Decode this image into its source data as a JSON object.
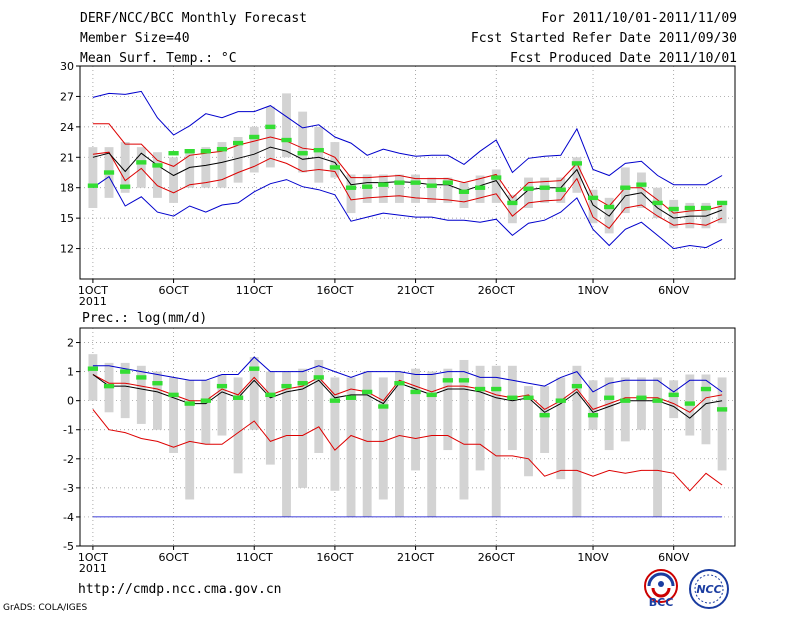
{
  "header": {
    "title": "DERF/NCC/BCC Monthly Forecast",
    "member_size": "Member Size=40",
    "variable": "Mean Surf. Temp.: °C",
    "period": "For 2011/10/01-2011/11/09",
    "fcst_started": "Fcst Started Refer Date 2011/09/30",
    "fcst_produced": "Fcst Produced Date 2011/10/01"
  },
  "footer": {
    "url": "http://cmdp.ncc.cma.gov.cn",
    "grads": "GrADS: COLA/IGES",
    "logo_bcc": "BCC",
    "logo_ncc": "NCC"
  },
  "colors": {
    "box": "#d3d3d3",
    "mean": "#000000",
    "envelope": "#0000cc",
    "percentile": "#dd0000",
    "observed": "#33dd33"
  },
  "chart_data": [
    {
      "name": "temperature",
      "type": "line",
      "title": "Mean Surf. Temp.: °C",
      "x_ticks": [
        "1OCT",
        "6OCT",
        "11OCT",
        "16OCT",
        "21OCT",
        "26OCT",
        "1NOV",
        "6NOV"
      ],
      "x_tick_days": [
        1,
        6,
        11,
        16,
        21,
        26,
        32,
        37
      ],
      "x_extra_label": "2011",
      "xlim": [
        0.2,
        40.8
      ],
      "ylim": [
        9,
        30
      ],
      "y_ticks": [
        12,
        15,
        18,
        21,
        24,
        27,
        30
      ],
      "grid": "dotted",
      "days": [
        1,
        2,
        3,
        4,
        5,
        6,
        7,
        8,
        9,
        10,
        11,
        12,
        13,
        14,
        15,
        16,
        17,
        18,
        19,
        20,
        21,
        22,
        23,
        24,
        25,
        26,
        27,
        28,
        29,
        30,
        31,
        32,
        33,
        34,
        35,
        36,
        37,
        38,
        39,
        40
      ],
      "mean": [
        21.0,
        21.4,
        19.6,
        21.4,
        20.2,
        19.2,
        20.0,
        20.2,
        20.5,
        20.9,
        21.3,
        22.0,
        21.6,
        20.8,
        21.0,
        20.5,
        18.3,
        18.5,
        18.5,
        18.6,
        18.5,
        18.3,
        18.3,
        17.7,
        18.2,
        18.7,
        16.4,
        17.8,
        18.0,
        18.0,
        19.8,
        16.3,
        15.2,
        17.2,
        17.5,
        16.0,
        15.0,
        15.2,
        15.2,
        15.8
      ],
      "p_high": [
        24.3,
        24.3,
        22.3,
        22.3,
        20.7,
        20.1,
        21.2,
        21.4,
        21.6,
        22.2,
        22.6,
        23.0,
        22.6,
        21.9,
        21.7,
        21.0,
        19.0,
        19.0,
        19.1,
        19.2,
        18.9,
        18.9,
        18.9,
        18.5,
        18.9,
        19.3,
        17.0,
        18.5,
        18.6,
        18.7,
        20.4,
        17.1,
        16.2,
        18.0,
        18.0,
        16.8,
        15.5,
        15.7,
        15.8,
        16.2
      ],
      "p_low": [
        21.3,
        21.5,
        18.7,
        19.9,
        18.2,
        17.5,
        18.3,
        18.5,
        18.8,
        19.5,
        20.1,
        20.9,
        20.4,
        19.6,
        19.8,
        19.6,
        16.8,
        17.0,
        17.1,
        17.2,
        17.0,
        16.9,
        16.8,
        16.6,
        17.0,
        17.4,
        15.2,
        16.5,
        16.7,
        16.8,
        18.9,
        15.1,
        14.0,
        16.0,
        16.3,
        15.2,
        14.3,
        14.5,
        14.3,
        15.0
      ],
      "env_high": [
        26.9,
        27.3,
        27.2,
        27.5,
        24.9,
        23.2,
        24.1,
        25.3,
        24.9,
        25.5,
        25.5,
        26.1,
        25.0,
        23.9,
        24.2,
        23.0,
        22.4,
        21.2,
        21.8,
        21.4,
        21.1,
        21.2,
        21.2,
        20.3,
        21.6,
        22.7,
        19.5,
        20.9,
        21.1,
        21.2,
        23.8,
        19.8,
        19.2,
        20.4,
        20.6,
        19.2,
        18.3,
        18.3,
        18.3,
        19.2
      ],
      "env_low": [
        18.0,
        19.1,
        16.2,
        17.1,
        15.6,
        15.2,
        16.2,
        15.6,
        16.3,
        16.5,
        17.6,
        18.4,
        18.8,
        18.1,
        17.8,
        17.3,
        14.7,
        15.1,
        15.5,
        15.3,
        15.1,
        15.1,
        14.8,
        14.8,
        14.6,
        14.9,
        13.3,
        14.5,
        14.8,
        15.6,
        17.0,
        13.9,
        12.3,
        13.9,
        14.6,
        13.3,
        12.0,
        12.3,
        12.1,
        12.9
      ],
      "box_top": [
        22.0,
        22.0,
        22.5,
        22.0,
        21.5,
        21.0,
        21.5,
        22.0,
        22.5,
        23.0,
        24.0,
        26.0,
        27.3,
        25.5,
        24.0,
        22.5,
        19.3,
        19.3,
        19.3,
        19.3,
        19.3,
        19.0,
        19.0,
        18.5,
        19.2,
        19.8,
        17.3,
        19.0,
        19.0,
        19.0,
        21.0,
        17.8,
        17.0,
        20.0,
        19.5,
        18.0,
        16.8,
        16.5,
        16.5,
        16.5
      ],
      "box_bottom": [
        16.0,
        17.0,
        17.5,
        18.0,
        17.0,
        16.5,
        18.0,
        18.0,
        18.0,
        18.5,
        19.5,
        20.0,
        21.0,
        19.5,
        18.5,
        19.0,
        15.5,
        16.5,
        16.5,
        16.5,
        16.5,
        16.5,
        16.5,
        16.0,
        16.5,
        16.5,
        14.5,
        16.0,
        16.5,
        16.5,
        17.5,
        14.5,
        13.5,
        15.5,
        16.0,
        15.0,
        14.0,
        14.0,
        14.0,
        14.5
      ],
      "observed": [
        18.2,
        19.5,
        18.1,
        20.5,
        20.2,
        21.4,
        21.6,
        21.6,
        21.8,
        22.4,
        23.0,
        24.0,
        22.7,
        21.4,
        21.7,
        20.0,
        18.0,
        18.1,
        18.3,
        18.5,
        18.5,
        18.2,
        18.5,
        17.6,
        18.0,
        19.0,
        16.5,
        17.9,
        18.0,
        17.8,
        20.4,
        17.0,
        16.1,
        18.0,
        18.3,
        16.5,
        15.9,
        16.0,
        16.0,
        16.5
      ]
    },
    {
      "name": "precipitation",
      "type": "line",
      "title": "Prec.: log(mm/d)",
      "x_ticks": [
        "1OCT",
        "6OCT",
        "11OCT",
        "16OCT",
        "21OCT",
        "26OCT",
        "1NOV",
        "6NOV"
      ],
      "x_tick_days": [
        1,
        6,
        11,
        16,
        21,
        26,
        32,
        37
      ],
      "x_extra_label": "2011",
      "xlim": [
        0.2,
        40.8
      ],
      "ylim": [
        -5,
        2.5
      ],
      "y_ticks": [
        -5,
        -4,
        -3,
        -2,
        -1,
        0,
        1,
        2
      ],
      "grid": "dotted",
      "days": [
        1,
        2,
        3,
        4,
        5,
        6,
        7,
        8,
        9,
        10,
        11,
        12,
        13,
        14,
        15,
        16,
        17,
        18,
        19,
        20,
        21,
        22,
        23,
        24,
        25,
        26,
        27,
        28,
        29,
        30,
        31,
        32,
        33,
        34,
        35,
        36,
        37,
        38,
        39,
        40
      ],
      "mean": [
        0.9,
        0.5,
        0.5,
        0.4,
        0.3,
        0.1,
        -0.1,
        -0.1,
        0.3,
        0.1,
        0.7,
        0.1,
        0.3,
        0.4,
        0.7,
        0.1,
        0.2,
        0.2,
        -0.1,
        0.6,
        0.4,
        0.2,
        0.4,
        0.4,
        0.3,
        0.1,
        0.0,
        0.1,
        -0.4,
        -0.1,
        0.3,
        -0.4,
        -0.2,
        0.0,
        0.0,
        0.0,
        -0.2,
        -0.6,
        -0.1,
        0.0
      ],
      "p_high": [
        0.9,
        0.6,
        0.6,
        0.5,
        0.4,
        0.2,
        0.0,
        0.0,
        0.4,
        0.2,
        0.8,
        0.2,
        0.4,
        0.5,
        0.8,
        0.2,
        0.4,
        0.3,
        0.0,
        0.7,
        0.5,
        0.3,
        0.5,
        0.5,
        0.4,
        0.2,
        0.1,
        0.2,
        -0.3,
        0.0,
        0.4,
        -0.3,
        -0.1,
        0.1,
        0.1,
        0.1,
        -0.1,
        -0.4,
        0.1,
        0.2
      ],
      "p_low": [
        -0.3,
        -1.0,
        -1.1,
        -1.3,
        -1.4,
        -1.6,
        -1.4,
        -1.5,
        -1.5,
        -1.1,
        -0.7,
        -1.4,
        -1.2,
        -1.2,
        -0.9,
        -1.7,
        -1.2,
        -1.4,
        -1.4,
        -1.2,
        -1.3,
        -1.2,
        -1.2,
        -1.5,
        -1.5,
        -1.9,
        -1.9,
        -2.0,
        -2.6,
        -2.4,
        -2.4,
        -2.6,
        -2.4,
        -2.5,
        -2.4,
        -2.4,
        -2.5,
        -3.1,
        -2.5,
        -2.9
      ],
      "env_high": [
        1.2,
        1.2,
        1.1,
        1.0,
        0.9,
        0.8,
        0.7,
        0.7,
        0.9,
        0.9,
        1.5,
        1.0,
        1.0,
        1.0,
        1.2,
        1.0,
        0.8,
        1.0,
        1.0,
        1.0,
        0.9,
        0.9,
        1.0,
        1.0,
        0.8,
        0.8,
        0.7,
        0.6,
        0.5,
        0.8,
        1.0,
        0.3,
        0.6,
        0.7,
        0.7,
        0.7,
        0.3,
        0.7,
        0.7,
        0.3
      ],
      "env_low": [
        -4.0,
        -4.0,
        -4.0,
        -4.0,
        -4.0,
        -4.0,
        -4.0,
        -4.0,
        -4.0,
        -4.0,
        -4.0,
        -4.0,
        -4.0,
        -4.0,
        -4.0,
        -4.0,
        -4.0,
        -4.0,
        -4.0,
        -4.0,
        -4.0,
        -4.0,
        -4.0,
        -4.0,
        -4.0,
        -4.0,
        -4.0,
        -4.0,
        -4.0,
        -4.0,
        -4.0,
        -4.0,
        -4.0,
        -4.0,
        -4.0,
        -4.0,
        -4.0,
        -4.0,
        -4.0,
        -4.0
      ],
      "box_top": [
        1.6,
        1.3,
        1.3,
        1.2,
        1.0,
        0.8,
        0.7,
        0.7,
        0.9,
        0.8,
        1.5,
        1.0,
        1.0,
        1.1,
        1.4,
        0.8,
        0.8,
        1.0,
        0.8,
        1.0,
        1.1,
        1.0,
        1.1,
        1.4,
        1.2,
        1.2,
        1.2,
        0.5,
        0.5,
        0.8,
        1.2,
        0.7,
        0.8,
        0.8,
        0.8,
        0.8,
        0.7,
        0.9,
        0.9,
        0.8
      ],
      "box_bottom": [
        0.0,
        -0.4,
        -0.6,
        -0.8,
        -1.0,
        -1.8,
        -3.4,
        -1.5,
        -1.2,
        -2.5,
        -1.0,
        -2.2,
        -4.0,
        -3.0,
        -1.8,
        -3.1,
        -4.0,
        -4.0,
        -3.4,
        -4.0,
        -2.4,
        -4.0,
        -1.7,
        -3.4,
        -2.4,
        -4.0,
        -1.7,
        -2.6,
        -1.8,
        -2.7,
        -4.0,
        -1.0,
        -1.7,
        -1.4,
        -1.0,
        -4.0,
        -0.6,
        -1.2,
        -1.5,
        -2.4
      ],
      "observed": [
        1.1,
        0.5,
        1.0,
        0.8,
        0.6,
        0.2,
        -0.1,
        0.0,
        0.5,
        0.1,
        1.1,
        0.2,
        0.5,
        0.6,
        0.8,
        0.0,
        0.1,
        0.3,
        -0.2,
        0.6,
        0.3,
        0.2,
        0.7,
        0.7,
        0.4,
        0.4,
        0.1,
        0.1,
        -0.5,
        0.0,
        0.5,
        -0.5,
        0.1,
        0.0,
        0.1,
        0.0,
        0.2,
        -0.1,
        0.4,
        -0.3
      ]
    }
  ]
}
